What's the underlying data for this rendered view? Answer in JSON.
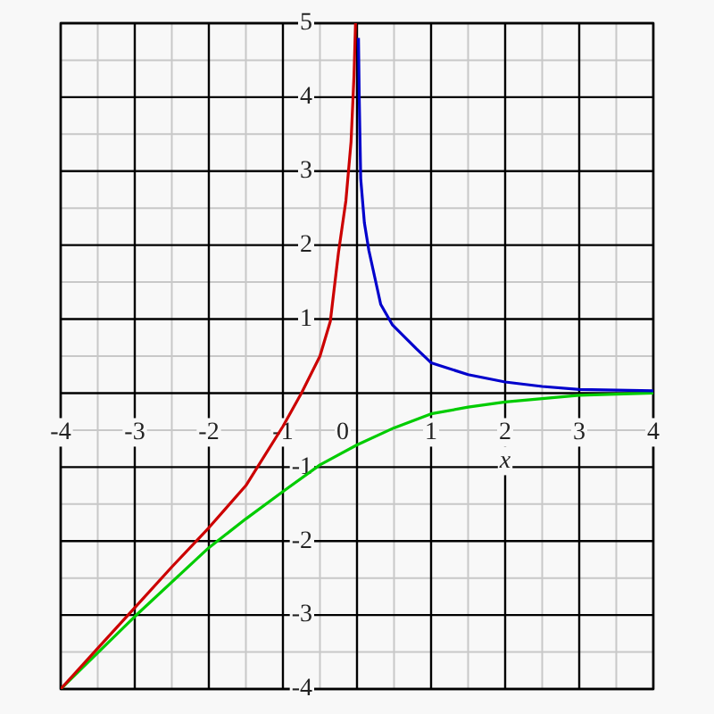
{
  "chart_data": {
    "type": "line",
    "xlabel": "x",
    "xlim": [
      -4,
      4
    ],
    "ylim": [
      -4,
      5
    ],
    "xticks": [
      -4,
      -3,
      -2,
      -1,
      0,
      1,
      2,
      3,
      4
    ],
    "yticks": [
      -4,
      -3,
      -2,
      -1,
      {
        "value": 0,
        "label": null
      },
      1,
      2,
      3,
      4,
      5
    ],
    "grid": true,
    "legend": false,
    "marker": "none",
    "line_style": "solid",
    "series": [
      {
        "color": "#cc0000",
        "x": [
          -4,
          -3.5,
          -3,
          -2.5,
          -2,
          -1.5,
          -1,
          -0.75,
          -0.5,
          -0.36,
          -0.25,
          -0.15,
          -0.08,
          -0.04,
          -0.02
        ],
        "values": [
          -4,
          -3.45,
          -2.9,
          -2.35,
          -1.82,
          -1.25,
          -0.45,
          0,
          0.5,
          0.97,
          1.9,
          2.6,
          3.4,
          4.3,
          5
        ]
      },
      {
        "color": "#0000cc",
        "x": [
          0.02,
          0.03,
          0.05,
          0.1,
          0.16,
          0.32,
          0.48,
          0.8,
          1,
          1.5,
          2,
          2.5,
          3,
          4
        ],
        "values": [
          4.8,
          4,
          2.9,
          2.3,
          1.93,
          1.2,
          0.92,
          0.6,
          0.41,
          0.25,
          0.15,
          0.09,
          0.05,
          0.03
        ]
      },
      {
        "color": "#00cc00",
        "x": [
          -4,
          -3,
          -2,
          -1.5,
          -1,
          -0.5,
          0,
          0.5,
          1,
          1.5,
          2,
          3,
          4
        ],
        "values": [
          -4,
          -3.02,
          -2.09,
          -1.7,
          -1.33,
          -0.97,
          -0.7,
          -0.47,
          -0.28,
          -0.19,
          -0.12,
          -0.03,
          0
        ]
      }
    ]
  }
}
